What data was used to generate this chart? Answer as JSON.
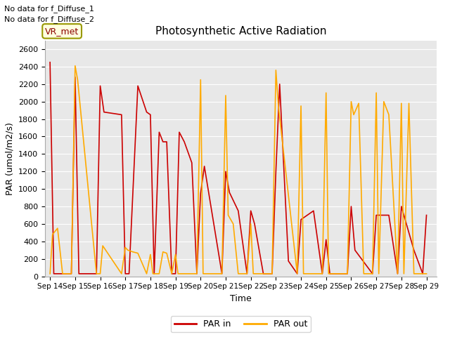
{
  "title": "Photosynthetic Active Radiation",
  "xlabel": "Time",
  "ylabel": "PAR (umol/m2/s)",
  "annotations": [
    "No data for f_Diffuse_1",
    "No data for f_Diffuse_2"
  ],
  "box_label": "VR_met",
  "legend_labels": [
    "PAR in",
    "PAR out"
  ],
  "line_colors": [
    "#cc0000",
    "#ffaa00"
  ],
  "ylim": [
    0,
    2700
  ],
  "yticks": [
    0,
    200,
    400,
    600,
    800,
    1000,
    1200,
    1400,
    1600,
    1800,
    2000,
    2200,
    2400,
    2600
  ],
  "xtick_labels": [
    "Sep 14",
    "Sep 15",
    "Sep 16",
    "Sep 17",
    "Sep 18",
    "Sep 19",
    "Sep 20",
    "Sep 21",
    "Sep 22",
    "Sep 23",
    "Sep 24",
    "Sep 25",
    "Sep 26",
    "Sep 27",
    "Sep 28",
    "Sep 29"
  ],
  "background_color": "#e8e8e8",
  "grid_color": "#ffffff",
  "par_in_x": [
    0,
    0.15,
    0.85,
    1.0,
    1.15,
    1.85,
    2.0,
    2.15,
    2.85,
    3.0,
    3.15,
    3.5,
    3.85,
    4.0,
    4.15,
    4.35,
    4.5,
    4.65,
    4.85,
    5.0,
    5.15,
    5.35,
    5.5,
    5.65,
    5.85,
    6.0,
    6.15,
    6.85,
    7.0,
    7.15,
    7.5,
    7.85,
    8.0,
    8.15,
    8.5,
    8.85,
    9.0,
    9.15,
    9.5,
    9.85,
    10.0,
    10.5,
    10.85,
    11.0,
    11.15,
    11.85,
    12.0,
    12.15,
    12.85,
    13.0,
    13.5,
    13.85,
    14.0,
    14.5,
    14.85,
    15.0
  ],
  "par_in_y": [
    2450,
    30,
    30,
    2280,
    30,
    30,
    2180,
    1880,
    1850,
    30,
    30,
    2180,
    1880,
    1850,
    30,
    1650,
    1540,
    1540,
    30,
    30,
    1650,
    1540,
    1420,
    1300,
    30,
    950,
    1260,
    30,
    1200,
    960,
    750,
    30,
    750,
    600,
    30,
    30,
    1200,
    2200,
    175,
    30,
    650,
    750,
    30,
    420,
    30,
    30,
    800,
    300,
    30,
    700,
    700,
    30,
    800,
    300,
    30,
    700
  ],
  "par_out_x": [
    0,
    0.1,
    0.3,
    0.5,
    0.85,
    1.0,
    1.1,
    1.85,
    2.0,
    2.1,
    2.85,
    3.0,
    3.1,
    3.3,
    3.5,
    3.85,
    4.0,
    4.1,
    4.35,
    4.5,
    4.65,
    4.85,
    5.0,
    5.1,
    5.85,
    6.0,
    6.1,
    6.85,
    7.0,
    7.1,
    7.3,
    7.5,
    7.85,
    8.0,
    8.1,
    8.85,
    9.0,
    9.1,
    9.85,
    10.0,
    10.1,
    10.85,
    11.0,
    11.1,
    11.85,
    12.0,
    12.1,
    12.3,
    12.5,
    12.85,
    13.0,
    13.1,
    13.3,
    13.5,
    13.85,
    14.0,
    14.1,
    14.3,
    14.5,
    14.85,
    15.0
  ],
  "par_out_y": [
    30,
    480,
    550,
    30,
    30,
    2410,
    2250,
    30,
    30,
    350,
    30,
    330,
    300,
    280,
    265,
    30,
    250,
    30,
    30,
    280,
    265,
    30,
    250,
    30,
    30,
    2250,
    30,
    30,
    2070,
    700,
    600,
    30,
    30,
    600,
    30,
    30,
    2360,
    1950,
    30,
    1950,
    30,
    30,
    2100,
    30,
    30,
    2000,
    1850,
    1980,
    30,
    30,
    2100,
    30,
    2000,
    1850,
    30,
    1980,
    30,
    1980,
    30,
    30,
    30
  ]
}
